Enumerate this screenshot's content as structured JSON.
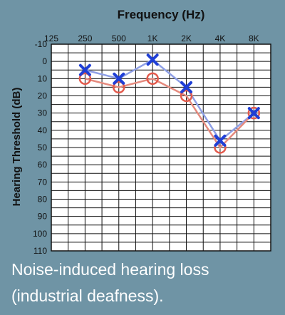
{
  "chart_data": {
    "type": "line",
    "title": "Frequency (Hz)",
    "xlabel": "",
    "ylabel": "Hearing Threshold (dB)",
    "categories": [
      "125",
      "250",
      "500",
      "1K",
      "2K",
      "4K",
      "8K"
    ],
    "y_ticks": [
      "-10",
      "0",
      "10",
      "20",
      "30",
      "40",
      "50",
      "60",
      "70",
      "80",
      "90",
      "100",
      "110"
    ],
    "ylim": [
      -10,
      110
    ],
    "y_inverted": true,
    "grid": true,
    "series": [
      {
        "marker": "cross",
        "color": "#1f3fd6",
        "line_color": "#8fa0e6",
        "values": [
          null,
          5,
          10,
          -1,
          15,
          46,
          30
        ]
      },
      {
        "marker": "circle",
        "color": "#e35a4c",
        "line_color": "#e58a7e",
        "values": [
          null,
          10,
          15,
          10,
          20,
          50,
          30
        ]
      }
    ]
  },
  "caption": {
    "line1": "Noise-induced hearing loss",
    "line2": "(industrial deafness)."
  }
}
